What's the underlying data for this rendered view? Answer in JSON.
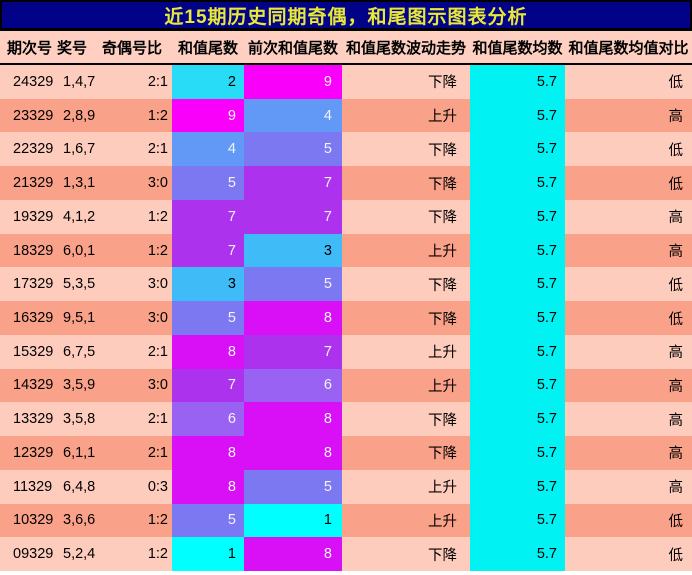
{
  "title": "近15期历史同期奇偶，和尾图示图表分析",
  "chart_data": {
    "type": "table",
    "title": "近15期历史同期奇偶，和尾图示图表分析",
    "columns": [
      "期次号",
      "奖号",
      "奇偶号比",
      "和值尾数",
      "前次和值尾数",
      "和值尾数波动走势",
      "和值尾数均数",
      "和值尾数均值对比"
    ],
    "rows": [
      [
        "24329",
        "1,4,7",
        "2:1",
        "2",
        "9",
        "下降",
        "5.7",
        "低"
      ],
      [
        "23329",
        "2,8,9",
        "1:2",
        "9",
        "4",
        "上升",
        "5.7",
        "高"
      ],
      [
        "22329",
        "1,6,7",
        "2:1",
        "4",
        "5",
        "下降",
        "5.7",
        "低"
      ],
      [
        "21329",
        "1,3,1",
        "3:0",
        "5",
        "7",
        "下降",
        "5.7",
        "低"
      ],
      [
        "19329",
        "4,1,2",
        "1:2",
        "7",
        "7",
        "下降",
        "5.7",
        "高"
      ],
      [
        "18329",
        "6,0,1",
        "1:2",
        "7",
        "3",
        "上升",
        "5.7",
        "高"
      ],
      [
        "17329",
        "5,3,5",
        "3:0",
        "3",
        "5",
        "下降",
        "5.7",
        "低"
      ],
      [
        "16329",
        "9,5,1",
        "3:0",
        "5",
        "8",
        "下降",
        "5.7",
        "低"
      ],
      [
        "15329",
        "6,7,5",
        "2:1",
        "8",
        "7",
        "上升",
        "5.7",
        "高"
      ],
      [
        "14329",
        "3,5,9",
        "3:0",
        "7",
        "6",
        "上升",
        "5.7",
        "高"
      ],
      [
        "13329",
        "3,5,8",
        "2:1",
        "6",
        "8",
        "下降",
        "5.7",
        "高"
      ],
      [
        "12329",
        "6,1,1",
        "2:1",
        "8",
        "8",
        "下降",
        "5.7",
        "高"
      ],
      [
        "11329",
        "6,4,8",
        "0:3",
        "8",
        "5",
        "上升",
        "5.7",
        "高"
      ],
      [
        "10329",
        "3,6,6",
        "1:2",
        "5",
        "1",
        "上升",
        "5.7",
        "低"
      ],
      [
        "09329",
        "5,2,4",
        "1:2",
        "1",
        "8",
        "下降",
        "5.7",
        "低"
      ]
    ],
    "mean_value": "5.7"
  },
  "colors": {
    "title_bg": "#020288",
    "title_text": "#E8E838",
    "header_bg": "#FFD0C1",
    "row_light": "#FECCBD",
    "row_dark": "#FAA189",
    "mean_col_bg": "#00F2F2",
    "value_cell_text_light": "#F4F4F4",
    "value_cell_text_dark": "#000000",
    "value_colors": {
      "1": "#00FFFF",
      "2": "#28DCF7",
      "3": "#3FBCF7",
      "4": "#6399F6",
      "5": "#7C78F1",
      "6": "#9A62F3",
      "7": "#AD32EE",
      "8": "#D90FF6",
      "9": "#F900FB"
    }
  }
}
